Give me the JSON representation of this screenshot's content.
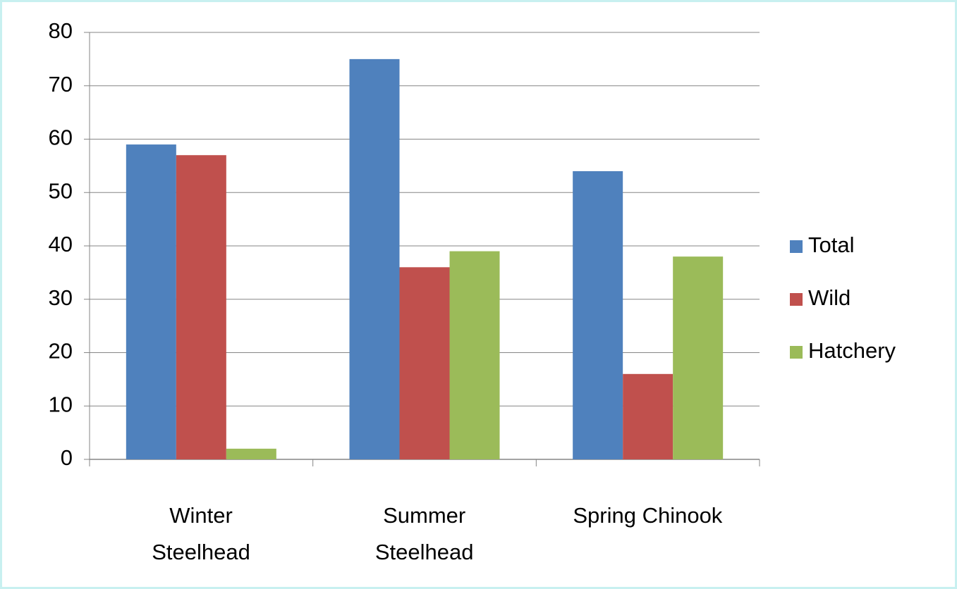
{
  "chart_data": {
    "type": "bar",
    "categories": [
      "Winter\nSteelhead",
      "Summer\nSteelhead",
      "Spring Chinook"
    ],
    "series": [
      {
        "name": "Total",
        "color": "#4f81bd",
        "values": [
          59,
          75,
          54
        ]
      },
      {
        "name": "Wild",
        "color": "#c0504d",
        "values": [
          57,
          36,
          16
        ]
      },
      {
        "name": "Hatchery",
        "color": "#9bbb59",
        "values": [
          2,
          39,
          38
        ]
      }
    ],
    "ylim": [
      0,
      80
    ],
    "yticks": [
      0,
      10,
      20,
      30,
      40,
      50,
      60,
      70,
      80
    ],
    "grid": true,
    "legend": "right"
  }
}
